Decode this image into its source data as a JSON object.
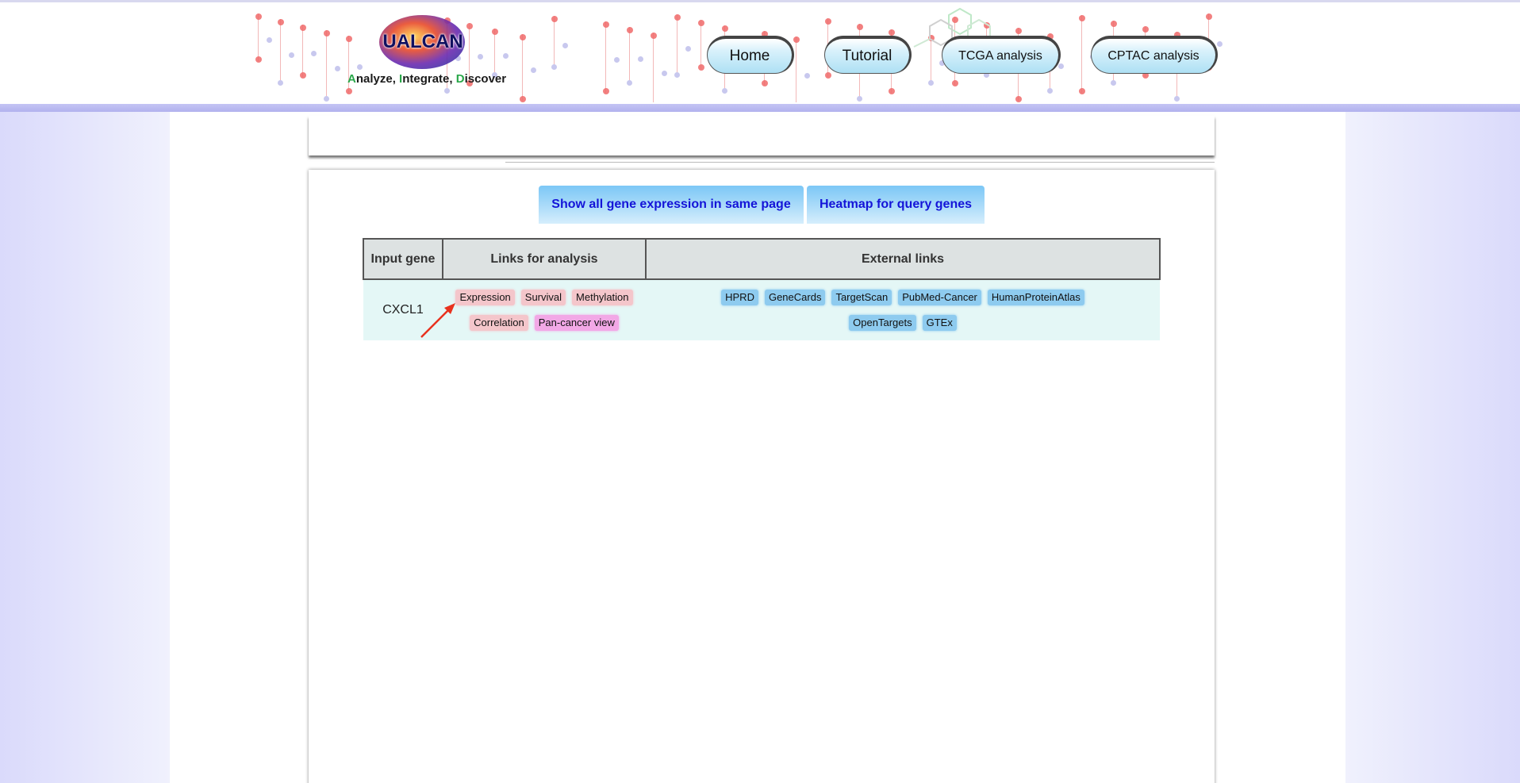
{
  "header": {
    "logo": {
      "name": "UALCAN",
      "tagline_parts": [
        {
          "text": "A",
          "accent": true
        },
        {
          "text": "nalyze, ",
          "accent": false
        },
        {
          "text": "I",
          "accent": true
        },
        {
          "text": "ntegrate, ",
          "accent": false
        },
        {
          "text": "D",
          "accent": true
        },
        {
          "text": "iscover",
          "accent": false
        }
      ]
    },
    "nav": [
      {
        "id": "home",
        "label": "Home"
      },
      {
        "id": "tutorial",
        "label": "Tutorial"
      },
      {
        "id": "tcga",
        "label": "TCGA analysis"
      },
      {
        "id": "cptac",
        "label": "CPTAC analysis"
      }
    ]
  },
  "actions": {
    "show_all": "Show all gene expression in same page",
    "heatmap": "Heatmap for query genes"
  },
  "table": {
    "headers": [
      "Input gene",
      "Links for analysis",
      "External links"
    ],
    "rows": [
      {
        "gene": "CXCL1",
        "analysis_links": [
          {
            "label": "Expression",
            "color": "pink"
          },
          {
            "label": "Survival",
            "color": "pink"
          },
          {
            "label": "Methylation",
            "color": "pink"
          },
          {
            "label": "Correlation",
            "color": "pink"
          },
          {
            "label": "Pan-cancer view",
            "color": "magenta"
          }
        ],
        "external_links": [
          {
            "label": "HPRD"
          },
          {
            "label": "GeneCards"
          },
          {
            "label": "TargetScan"
          },
          {
            "label": "PubMed-Cancer"
          },
          {
            "label": "HumanProteinAtlas"
          },
          {
            "label": "OpenTargets"
          },
          {
            "label": "GTEx"
          }
        ]
      }
    ]
  },
  "colors": {
    "header_bar": "#b8b8f0",
    "action_text": "#1414d8",
    "row_bg": "#e4f7f6",
    "annotation_arrow": "#e8321e"
  },
  "annotation": {
    "icon": "red-arrow-icon"
  }
}
